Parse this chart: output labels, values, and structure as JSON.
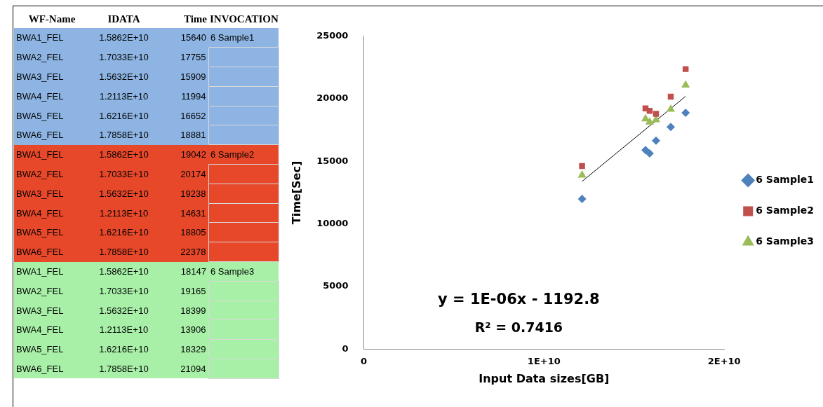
{
  "chart_data": [
    {
      "type": "other",
      "annotations": [
        "WF-Name",
        "IDATA",
        "Time",
        "INVOCATION",
        "BWA1_FEL",
        "1.5862E+10",
        "15640",
        "6 Sample1",
        "BWA2_FEL",
        "1.7033E+10",
        "17755",
        "BWA3_FEL",
        "1.5632E+10",
        "15909",
        "BWA4_FEL",
        "1.2113E+10",
        "11994",
        "BWA5_FEL",
        "1.6216E+10",
        "16652",
        "BWA6_FEL",
        "1.7858E+10",
        "18881",
        "BWA1_FEL",
        "1.5862E+10",
        "19042",
        "6 Sample2",
        "BWA2_FEL",
        "1.7033E+10",
        "20174",
        "BWA3_FEL",
        "1.5632E+10",
        "19238",
        "BWA4_FEL",
        "1.2113E+10",
        "14631",
        "BWA5_FEL",
        "1.6216E+10",
        "18805",
        "BWA6_FEL",
        "1.7858E+10",
        "22378",
        "BWA1_FEL",
        "1.5862E+10",
        "18147",
        "6 Sample3",
        "BWA2_FEL",
        "1.7033E+10",
        "19165",
        "BWA3_FEL",
        "1.5632E+10",
        "18399",
        "BWA4_FEL",
        "1.2113E+10",
        "13906",
        "BWA5_FEL",
        "1.6216E+10",
        "18329",
        "BWA6_FEL",
        "1.7858E+10",
        "21094"
      ]
    },
    {
      "type": "scatter",
      "xlabel": "Input Data sizes[GB]",
      "ylabel": "Time[Sec]",
      "annotations": [
        "y = 1E-06x - 1192.8",
        "R² = 0.7416"
      ],
      "xlim": [
        0,
        20000000000
      ],
      "xticks": [
        0,
        {
          "value": 10000000000,
          "label": "1E+10"
        },
        {
          "value": 20000000000,
          "label": "2E+10"
        }
      ],
      "ylim": [
        0,
        25000
      ],
      "yticks": [
        0,
        5000,
        10000,
        15000,
        20000,
        25000
      ],
      "legend": "right",
      "series": [
        {
          "name": "6 Sample1",
          "color": "#4f81bd",
          "marker": "diamond",
          "x": [
            15862000000,
            17033000000,
            15632000000,
            12113000000,
            16216000000,
            17858000000
          ],
          "values": [
            15640,
            17755,
            15909,
            11994,
            16652,
            18881
          ]
        },
        {
          "name": "6 Sample2",
          "color": "#c0504d",
          "marker": "square",
          "x": [
            15862000000,
            17033000000,
            15632000000,
            12113000000,
            16216000000,
            17858000000
          ],
          "values": [
            19042,
            20174,
            19238,
            14631,
            18805,
            22378
          ]
        },
        {
          "name": "6 Sample3",
          "color": "#9bbb59",
          "marker": "triangle",
          "x": [
            15862000000,
            17033000000,
            15632000000,
            12113000000,
            16216000000,
            17858000000
          ],
          "values": [
            18147,
            19165,
            18399,
            13906,
            18329,
            21094
          ]
        },
        {
          "type": "line",
          "color": "#000000",
          "marker": "none",
          "x": [
            12113000000,
            17858000000
          ],
          "values": [
            13400,
            20200
          ]
        }
      ]
    }
  ]
}
